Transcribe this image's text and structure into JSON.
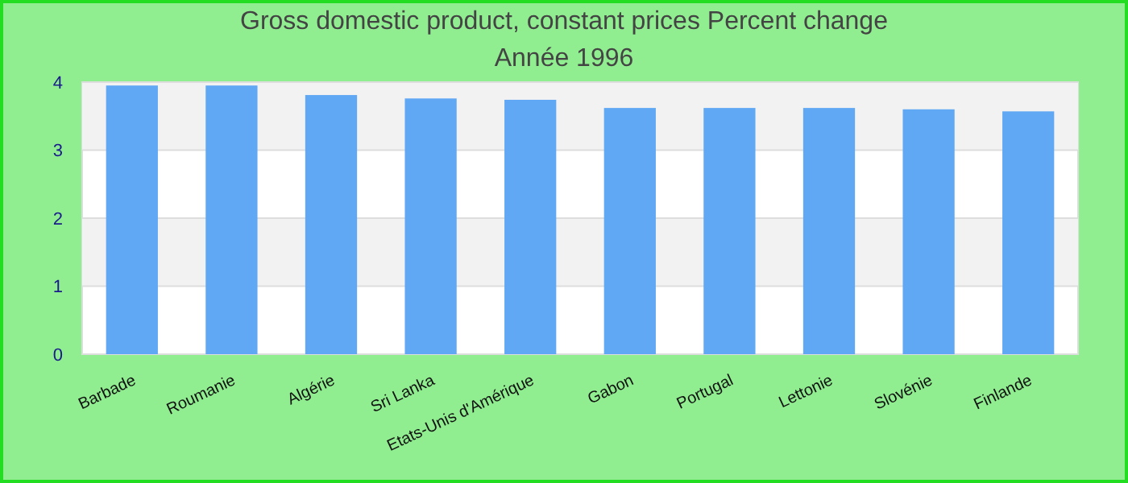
{
  "chart_data": {
    "type": "bar",
    "title": "Gross domestic product, constant prices  Percent change",
    "subtitle": "Année 1996",
    "categories": [
      "Barbade",
      "Roumanie",
      "Algérie",
      "Sri Lanka",
      "Etats-Unis d'Amérique",
      "Gabon",
      "Portugal",
      "Lettonie",
      "Slovénie",
      "Finlande"
    ],
    "values": [
      3.95,
      3.95,
      3.81,
      3.76,
      3.74,
      3.62,
      3.62,
      3.62,
      3.6,
      3.57
    ],
    "color": "#60a8f4",
    "ylim": [
      0,
      4
    ],
    "yticks": [
      0,
      1,
      2,
      3,
      4
    ],
    "grid": "y"
  }
}
